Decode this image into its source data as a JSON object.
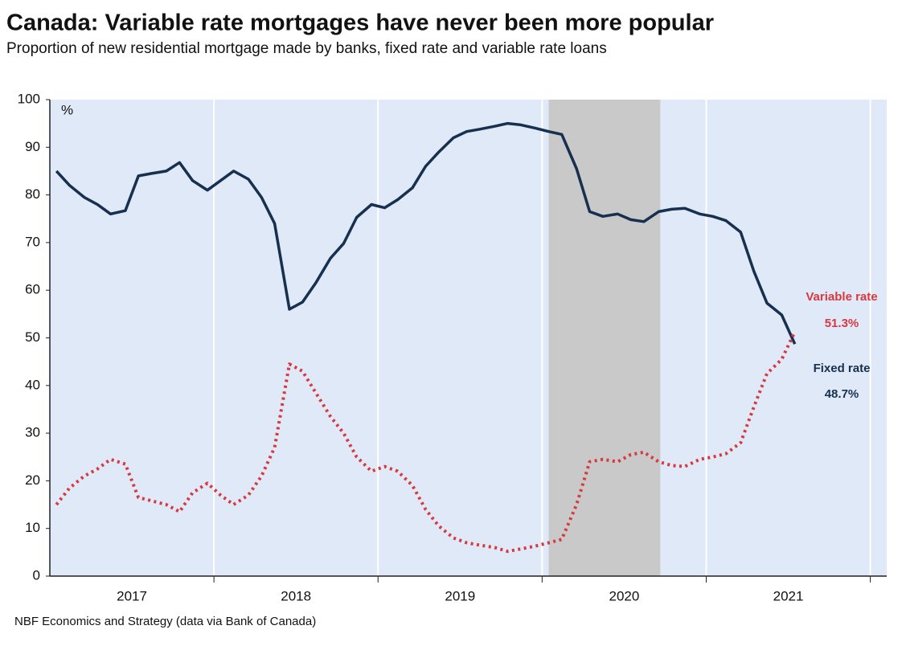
{
  "chart_data": {
    "type": "line",
    "title": "Canada: Variable rate mortgages have never been more popular",
    "subtitle": "Proportion of new residential mortgage made by banks, fixed rate and variable rate loans",
    "y_label": "%",
    "source": "NBF Economics and Strategy (data via Bank of Canada)",
    "x": [
      2017.04,
      2017.12,
      2017.21,
      2017.29,
      2017.37,
      2017.46,
      2017.54,
      2017.62,
      2017.71,
      2017.79,
      2017.87,
      2017.96,
      2018.04,
      2018.12,
      2018.21,
      2018.29,
      2018.37,
      2018.46,
      2018.54,
      2018.62,
      2018.71,
      2018.79,
      2018.87,
      2018.96,
      2019.04,
      2019.12,
      2019.21,
      2019.29,
      2019.37,
      2019.46,
      2019.54,
      2019.62,
      2019.71,
      2019.79,
      2019.87,
      2019.96,
      2020.04,
      2020.12,
      2020.21,
      2020.29,
      2020.37,
      2020.46,
      2020.54,
      2020.62,
      2020.71,
      2020.79,
      2020.87,
      2020.96,
      2021.04,
      2021.12,
      2021.21,
      2021.29,
      2021.37,
      2021.46,
      2021.54
    ],
    "series": [
      {
        "name": "Fixed rate",
        "color": "#17304f",
        "end_label": "48.7%",
        "values": [
          85,
          82,
          79.5,
          78,
          76,
          76.7,
          84,
          84.5,
          85,
          86.8,
          83,
          81,
          83,
          85,
          83.3,
          79.5,
          74,
          56,
          57.5,
          61.5,
          66.7,
          69.8,
          75.3,
          78,
          77.3,
          79,
          81.5,
          86,
          89,
          92,
          93.3,
          93.8,
          94.4,
          95,
          94.7,
          94,
          93.3,
          92.7,
          85.5,
          76.5,
          75.5,
          76,
          74.8,
          74.4,
          76.5,
          77,
          77.2,
          76,
          75.5,
          74.6,
          72.2,
          64,
          57.3,
          54.8,
          48.7
        ]
      },
      {
        "name": "Variable rate",
        "color": "#d8383f",
        "end_label": "51.3%",
        "values": [
          15,
          18.5,
          21,
          22.5,
          24.5,
          23.5,
          16.5,
          15.8,
          15,
          13.5,
          17.5,
          19.5,
          17,
          15,
          17,
          21,
          27,
          44.5,
          43,
          38.5,
          33.5,
          30,
          25,
          22,
          23,
          22,
          19,
          14,
          10.5,
          8,
          7,
          6.5,
          6,
          5.2,
          5.7,
          6.3,
          7,
          7.7,
          15,
          24,
          24.5,
          24,
          25.5,
          26,
          24,
          23.2,
          23,
          24.5,
          25,
          25.7,
          28,
          35.5,
          42.5,
          45.5,
          51.3
        ]
      }
    ],
    "xlim": [
      2017.0,
      2022.1
    ],
    "xticks": [
      {
        "value": 2017.5,
        "label": "2017"
      },
      {
        "value": 2018.5,
        "label": "2018"
      },
      {
        "value": 2019.5,
        "label": "2019"
      },
      {
        "value": 2020.5,
        "label": "2020"
      },
      {
        "value": 2021.5,
        "label": "2021"
      }
    ],
    "xgrid": [
      2018,
      2019,
      2020,
      2021,
      2022
    ],
    "shade": [
      2020.04,
      2020.72
    ],
    "ylim": [
      0,
      100
    ],
    "yticks": [
      0,
      10,
      20,
      30,
      40,
      50,
      60,
      70,
      80,
      90,
      100
    ]
  }
}
